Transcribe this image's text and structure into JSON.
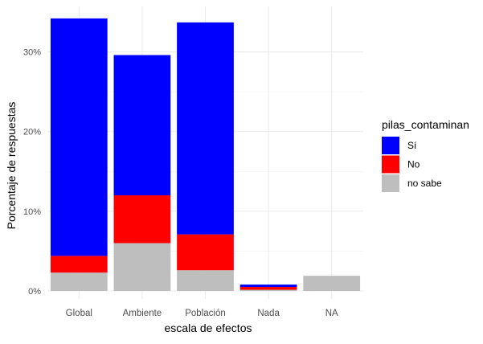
{
  "chart_data": {
    "type": "bar",
    "stacked": true,
    "xlabel": "escala de efectos",
    "ylabel": "Porcentaje de respuestas",
    "categories": [
      "Global",
      "Ambiente",
      "Población",
      "Nada",
      "NA"
    ],
    "ylim": [
      0,
      34.5
    ],
    "y_ticks": [
      0,
      10,
      20,
      30
    ],
    "y_tick_labels": [
      "0%",
      "10%",
      "20%",
      "30%"
    ],
    "grid": true,
    "legend": {
      "title": "pilas_contaminan",
      "placement": "right"
    },
    "series": [
      {
        "name": "no sabe",
        "color": "#BEBEBE",
        "values": [
          2.3,
          6.0,
          2.6,
          0.15,
          1.9
        ]
      },
      {
        "name": "No",
        "color": "#FF0000",
        "values": [
          2.1,
          6.0,
          4.5,
          0.35,
          0
        ]
      },
      {
        "name": "Sí",
        "color": "#0000FF",
        "values": [
          29.8,
          17.6,
          26.6,
          0.3,
          0
        ]
      }
    ],
    "legend_order": [
      "Sí",
      "No",
      "no sabe"
    ]
  }
}
